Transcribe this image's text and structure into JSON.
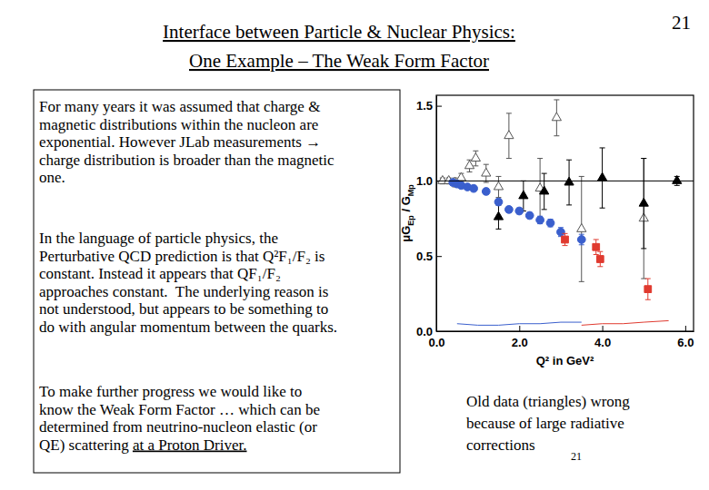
{
  "slide": {
    "title": [
      "Interface between Particle & Nuclear Physics:",
      "One Example – The Weak Form Factor"
    ],
    "page_number": "21",
    "paragraphs": [
      [
        "For many years it was assumed that charge &",
        "magnetic distributions within the nucleon are",
        "exponential. However JLab measurements →",
        "charge distribution is broader than the magnetic",
        "one."
      ],
      [
        "In the language of particle physics, the",
        "Perturbative QCD prediction is that Q²F₁/F₂ is",
        "constant. Instead it appears that QF₁/F₂",
        "approaches constant.  The underlying reason is",
        "not understood, but appears to be something to",
        "do with angular momentum between the quarks."
      ],
      [
        "To make further progress we would like to",
        "know the Weak Form Factor … which can be",
        "determined from neutrino-nucleon elastic (or",
        "QE) scattering "
      ]
    ],
    "underlined_phrase": "at a Proton Driver.",
    "caption": [
      "Old data (triangles) wrong",
      "because of large radiative",
      "corrections"
    ],
    "caption_number": "21"
  },
  "chart_data": {
    "type": "scatter",
    "ylabel": [
      {
        "text": "μG"
      },
      {
        "text": "Ep",
        "sub": true
      },
      {
        "text": " / G"
      },
      {
        "text": "Mp",
        "sub": true
      }
    ],
    "xlabel": "Q² in GeV²",
    "xlim": [
      0,
      6.2
    ],
    "ylim": [
      0,
      1.57
    ],
    "xticks": [
      {
        "value": 0,
        "label": "0.0"
      },
      {
        "value": 2,
        "label": "2.0"
      },
      {
        "value": 4,
        "label": "4.0"
      },
      {
        "value": 6,
        "label": "6.0"
      }
    ],
    "yticks": [
      {
        "value": 0,
        "label": "0.0"
      },
      {
        "value": 0.5,
        "label": "0.5"
      },
      {
        "value": 1,
        "label": "1.0"
      },
      {
        "value": 1.5,
        "label": "1.5"
      }
    ],
    "series": [
      {
        "type": "scatter",
        "marker": "triangle-open",
        "color": "#555555",
        "x": [
          0.15,
          0.3,
          0.45,
          0.6,
          0.8,
          0.95,
          1.2,
          1.5,
          1.75,
          2.5,
          2.9,
          3.5,
          5.0
        ],
        "values": [
          1.0,
          1.0,
          0.99,
          1.02,
          1.1,
          1.15,
          1.05,
          0.96,
          1.3,
          0.95,
          1.42,
          0.68,
          0.75
        ],
        "errors": [
          0.02,
          0.02,
          0.03,
          0.03,
          0.04,
          0.05,
          0.06,
          0.07,
          0.15,
          0.2,
          0.12,
          0.35,
          0.4
        ]
      },
      {
        "type": "scatter",
        "marker": "triangle",
        "color": "#000000",
        "x": [
          1.5,
          2.1,
          2.6,
          3.2,
          4.0,
          5.0,
          5.8
        ],
        "values": [
          0.76,
          0.9,
          0.93,
          0.99,
          1.02,
          0.85,
          1.0
        ],
        "errors": [
          0.08,
          0.1,
          0.12,
          0.15,
          0.2,
          0.3,
          0.03
        ]
      },
      {
        "type": "scatter",
        "marker": "circle",
        "color": "#3a5fcd",
        "x": [
          0.4,
          0.5,
          0.6,
          0.75,
          0.9,
          1.2,
          1.5,
          1.75,
          2.0,
          2.25,
          2.5,
          2.75,
          3.0,
          3.5
        ],
        "values": [
          0.99,
          0.98,
          0.97,
          0.96,
          0.95,
          0.93,
          0.86,
          0.81,
          0.8,
          0.77,
          0.74,
          0.72,
          0.66,
          0.61
        ],
        "errors": [
          0.01,
          0.01,
          0.01,
          0.015,
          0.015,
          0.02,
          0.02,
          0.02,
          0.02,
          0.02,
          0.025,
          0.025,
          0.03,
          0.035
        ]
      },
      {
        "type": "scatter",
        "marker": "square",
        "color": "#e03a2f",
        "x": [
          3.1,
          3.85,
          3.95,
          5.1
        ],
        "values": [
          0.61,
          0.56,
          0.48,
          0.28
        ],
        "errors": [
          0.04,
          0.05,
          0.05,
          0.07
        ]
      },
      {
        "type": "line",
        "color": "#3a5fcd",
        "x": [
          0.5,
          1.0,
          1.5,
          2.0,
          2.5,
          3.0,
          3.5
        ],
        "values": [
          0.05,
          0.04,
          0.04,
          0.05,
          0.05,
          0.06,
          0.06
        ]
      },
      {
        "type": "line",
        "color": "#e03a2f",
        "x": [
          3.5,
          4.0,
          4.5,
          5.0,
          5.6
        ],
        "values": [
          0.04,
          0.05,
          0.05,
          0.06,
          0.07
        ]
      },
      {
        "type": "line",
        "color": "#000000",
        "x": [
          0.0,
          6.2
        ],
        "values": [
          1.0,
          1.0
        ]
      }
    ]
  }
}
